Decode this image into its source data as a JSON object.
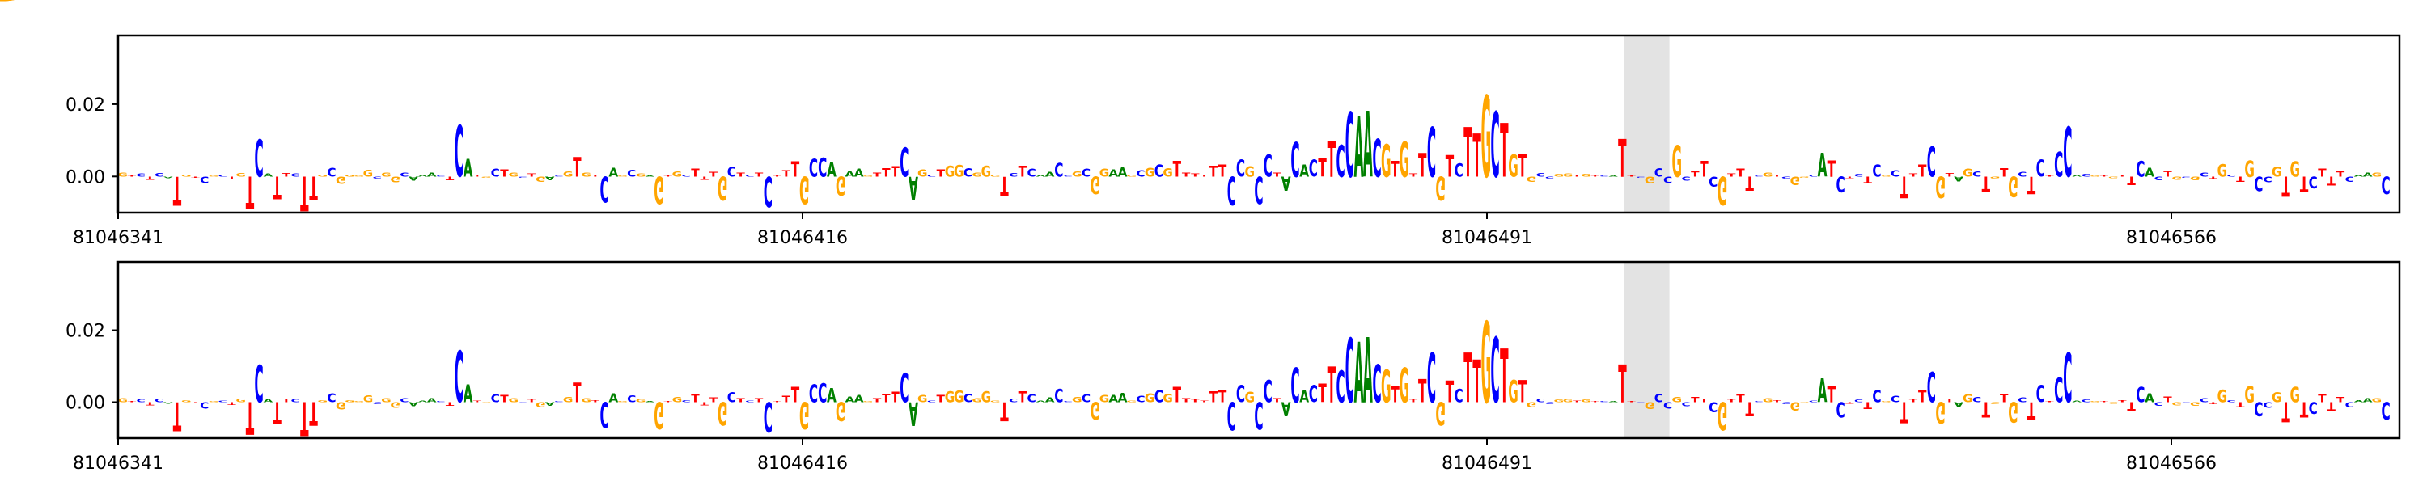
{
  "colors": {
    "A": "#008000",
    "C": "#0000ff",
    "G": "#ffa500",
    "T": "#ff0000",
    "highlight": "#e3e3e3"
  },
  "chart_data": [
    {
      "type": "sequence-logo",
      "title": "",
      "xlabel": "",
      "ylabel": "",
      "ylim": [
        -0.01,
        0.039
      ],
      "yticks": [
        {
          "value": 0.0,
          "label": "0.00"
        },
        {
          "value": 0.02,
          "label": "0.02"
        }
      ],
      "xlim": [
        81046341,
        81046591
      ],
      "xticks": [
        {
          "value": 81046341,
          "label": "81046341"
        },
        {
          "value": 81046416,
          "label": "81046416"
        },
        {
          "value": 81046491,
          "label": "81046491"
        },
        {
          "value": 81046566,
          "label": "81046566"
        }
      ],
      "highlight": {
        "start": 81046506,
        "end": 81046511
      },
      "sequence": "GTCTCATGTCGCTGTCATTCTTGCGGGGCGGCAAACTCATGCTGCTGACGTGTCAGCGAGTGCTTTGCTCTCTTTGCCAGAAGTTTCAGCTGGCGGGTCTCAACCGCGGAAGCGCGTTTTTTCCGCCTACACTTCCAACGTGTTCGTCTTGCTGTGCCGGTGTCATTCGCCGCTTCGTTTCGTCGGCATCTCTCGCTTTCGTAGCTGTGCTCTCCACGTGTTCACTGCGCTGCTGCCGTGTCTTTCAAGCG",
      "grid": false,
      "tracks": [
        {
          "name": "",
          "values": [
            0.0012,
            0.0001,
            0.0008,
            -0.0009,
            0.001,
            -0.0004,
            -0.008,
            0.0005,
            -0.0001,
            -0.0017,
            0.0003,
            0.0004,
            -0.0007,
            0.001,
            -0.009,
            0.0104,
            0.0008,
            -0.0062,
            0.001,
            0.0008,
            -0.0096,
            -0.0066,
            0.0005,
            0.0024,
            -0.002,
            0.0006,
            0.0002,
            0.0019,
            -0.0006,
            0.0011,
            -0.0016,
            0.0012,
            -0.0012,
            0.0004,
            0.0012,
            0.0001,
            -0.001,
            0.0143,
            0.005,
            0.0004,
            -0.0001,
            0.0022,
            0.002,
            0.0011,
            -0.0001,
            0.0008,
            -0.0015,
            -0.001,
            0.0002,
            0.0014,
            0.0054,
            0.0012,
            0.0006,
            -0.0072,
            0.0025,
            0.0001,
            0.0019,
            0.0009,
            0.0002,
            -0.0075,
            0.0001,
            0.0015,
            0.0005,
            0.0022,
            -0.0009,
            0.0013,
            -0.0065,
            0.0027,
            0.0011,
            0.0004,
            0.0012,
            -0.0084,
            0.0,
            0.0017,
            0.0042,
            -0.0075,
            0.0049,
            0.0052,
            0.004,
            -0.0052,
            0.0016,
            0.0021,
            0.0001,
            0.0011,
            0.0023,
            0.0029,
            0.008,
            -0.0066,
            0.002,
            0.0004,
            0.002,
            0.0031,
            0.0032,
            0.0023,
            0.0012,
            0.003,
            0.0004,
            -0.0052,
            0.001,
            0.003,
            0.0022,
            0.0004,
            0.0013,
            0.0037,
            0.0003,
            0.0014,
            0.0022,
            -0.0048,
            0.0021,
            0.002,
            0.0026,
            0.0004,
            0.0017,
            0.0025,
            0.0033,
            0.0023,
            0.0043,
            0.0011,
            0.0009,
            0.0004,
            0.003,
            0.0034,
            -0.0078,
            0.0047,
            0.0029,
            -0.0076,
            0.0061,
            0.0011,
            -0.0039,
            0.0096,
            0.0034,
            0.0047,
            0.0051,
            0.0099,
            0.0089,
            0.0179,
            0.0168,
            0.0182,
            0.0105,
            0.009,
            0.0044,
            0.0097,
            0.0008,
            0.0065,
            0.0137,
            -0.0065,
            0.006,
            0.0036,
            0.0137,
            0.0119,
            0.0225,
            0.0181,
            0.0149,
            0.0061,
            0.0062,
            -0.0014,
            0.001,
            -0.0006,
            0.0007,
            0.0008,
            0.0004,
            0.0007,
            0.0001,
            0.0001,
            0.0002,
            0.0105,
            0.0002,
            -0.0002,
            -0.0019,
            0.0023,
            -0.0018,
            0.0088,
            -0.0012,
            0.0014,
            0.0043,
            -0.0028,
            -0.0078,
            0.0009,
            0.0022,
            -0.0039,
            0.0002,
            0.0011,
            0.0006,
            -0.0005,
            -0.0023,
            -0.0002,
            0.0004,
            0.0066,
            0.0045,
            -0.0043,
            -0.0004,
            0.0007,
            -0.0019,
            0.0034,
            0.0003,
            0.0017,
            -0.0059,
            0.0009,
            0.0033,
            0.0083,
            -0.006,
            0.001,
            -0.0013,
            0.0022,
            0.0014,
            -0.0042,
            -0.0006,
            0.0023,
            -0.0057,
            0.0013,
            -0.0048,
            0.0046,
            0.0003,
            0.0068,
            0.0138,
            0.0004,
            0.0007,
            0.0001,
            0.0002,
            -0.0004,
            0.0006,
            -0.0023,
            0.0043,
            0.0025,
            -0.001,
            0.0016,
            -0.0009,
            -0.0003,
            -0.001,
            0.0011,
            -0.0006,
            0.0035,
            0.0005,
            -0.0015,
            0.0045,
            -0.004,
            -0.0016,
            0.0028,
            -0.0055,
            0.0042,
            -0.0043,
            -0.0032,
            0.0022,
            -0.0024,
            0.0014,
            -0.0014,
            0.0006,
            0.0012,
            0.0011,
            -0.0048
          ]
        },
        {
          "name": "",
          "values": [
            0.0012,
            0.0001,
            0.0008,
            -0.0009,
            0.001,
            -0.0004,
            -0.008,
            0.0005,
            -0.0001,
            -0.0017,
            0.0003,
            0.0004,
            -0.0007,
            0.001,
            -0.009,
            0.0104,
            0.0008,
            -0.0062,
            0.001,
            0.0008,
            -0.0096,
            -0.0066,
            0.0005,
            0.0024,
            -0.002,
            0.0006,
            0.0002,
            0.0019,
            -0.0006,
            0.0011,
            -0.0016,
            0.0012,
            -0.0012,
            0.0004,
            0.0012,
            0.0001,
            -0.001,
            0.0143,
            0.005,
            0.0004,
            -0.0001,
            0.0022,
            0.002,
            0.0011,
            -0.0001,
            0.0008,
            -0.0015,
            -0.001,
            0.0002,
            0.0014,
            0.0054,
            0.0012,
            0.0006,
            -0.0072,
            0.0025,
            0.0001,
            0.0019,
            0.0009,
            0.0002,
            -0.0075,
            0.0001,
            0.0015,
            0.0005,
            0.0022,
            -0.0009,
            0.0013,
            -0.0065,
            0.0027,
            0.0011,
            0.0004,
            0.0012,
            -0.0084,
            0.0,
            0.0017,
            0.0042,
            -0.0075,
            0.0049,
            0.0052,
            0.004,
            -0.0052,
            0.0016,
            0.0021,
            0.0001,
            0.0011,
            0.0023,
            0.0029,
            0.008,
            -0.0066,
            0.002,
            0.0004,
            0.002,
            0.0031,
            0.0032,
            0.0023,
            0.0012,
            0.003,
            0.0004,
            -0.0052,
            0.001,
            0.003,
            0.0022,
            0.0004,
            0.0013,
            0.0037,
            0.0003,
            0.0014,
            0.0022,
            -0.0048,
            0.0021,
            0.002,
            0.0026,
            0.0004,
            0.0017,
            0.0025,
            0.0033,
            0.0023,
            0.0043,
            0.0011,
            0.0009,
            0.0004,
            0.003,
            0.0034,
            -0.0078,
            0.0047,
            0.0029,
            -0.0076,
            0.0061,
            0.0011,
            -0.0039,
            0.0096,
            0.0034,
            0.0047,
            0.0051,
            0.0099,
            0.0089,
            0.0179,
            0.0168,
            0.0182,
            0.0105,
            0.009,
            0.0044,
            0.0097,
            0.0008,
            0.0065,
            0.0137,
            -0.0065,
            0.006,
            0.0036,
            0.0137,
            0.0119,
            0.0225,
            0.0181,
            0.0149,
            0.0061,
            0.0062,
            -0.0014,
            0.001,
            -0.0006,
            0.0007,
            0.0008,
            0.0004,
            0.0007,
            0.0001,
            0.0001,
            0.0002,
            0.0105,
            0.0002,
            -0.0002,
            -0.0019,
            0.0023,
            -0.0018,
            0.0015,
            -0.0012,
            0.0014,
            0.001,
            -0.0028,
            -0.0078,
            0.0009,
            0.0022,
            -0.0039,
            0.0002,
            0.0011,
            0.0006,
            -0.0005,
            -0.0023,
            -0.0002,
            0.0004,
            0.0066,
            0.0045,
            -0.0043,
            -0.0004,
            0.0007,
            -0.0019,
            0.0034,
            0.0003,
            0.0017,
            -0.0059,
            0.0009,
            0.0033,
            0.0083,
            -0.006,
            0.001,
            -0.0013,
            0.0022,
            0.0014,
            -0.0042,
            -0.0006,
            0.0023,
            -0.0057,
            0.0013,
            -0.0048,
            0.0046,
            0.0003,
            0.0068,
            0.0138,
            0.0004,
            0.0007,
            0.0001,
            0.0002,
            -0.0004,
            0.0006,
            -0.0023,
            0.0043,
            0.0025,
            -0.001,
            0.0016,
            -0.0009,
            -0.0003,
            -0.001,
            0.0011,
            -0.0006,
            0.0035,
            0.0005,
            -0.0015,
            0.0045,
            -0.004,
            -0.0016,
            0.0028,
            -0.0055,
            0.0042,
            -0.0043,
            -0.0032,
            0.0022,
            -0.0024,
            0.0014,
            -0.0014,
            0.0006,
            0.0012,
            0.0011,
            -0.0048
          ]
        }
      ]
    }
  ]
}
